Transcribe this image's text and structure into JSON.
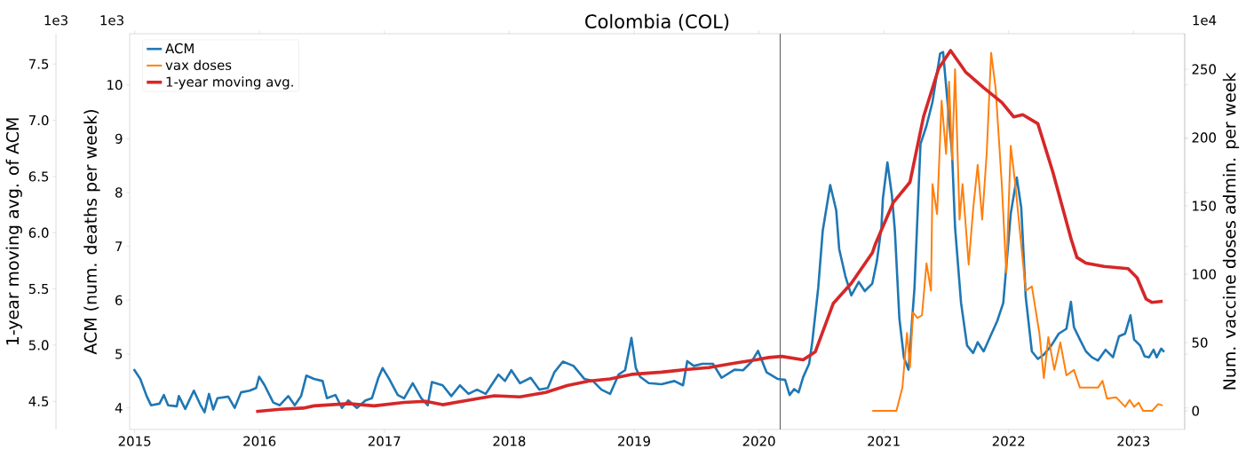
{
  "chart_data": {
    "type": "line",
    "title": "Colombia (COL)",
    "ylabel": "ACM (num. deaths per week)",
    "y2label": "Num. vaccine doses admin. per week",
    "y3label": "1-year moving avg. of ACM",
    "annotations": [
      "1e3",
      "1e3",
      "1e4"
    ],
    "xlim": [
      2014.96,
      2023.41
    ],
    "xticks": [
      2015,
      2016,
      2017,
      2018,
      2019,
      2020,
      2021,
      2022,
      2023
    ],
    "ylim": [
      3.6,
      10.95
    ],
    "yticks": [
      4,
      5,
      6,
      7,
      8,
      9,
      10
    ],
    "y2lim": [
      -13.6,
      276
    ],
    "y2ticks": [
      0,
      50,
      100,
      150,
      200,
      250
    ],
    "y3lim": [
      4.25,
      7.77
    ],
    "y3ticks": [
      4.5,
      {
        "value": 5,
        "label": "5.0"
      },
      5.5,
      {
        "value": 6,
        "label": "6.0"
      },
      6.5,
      {
        "value": 7,
        "label": "7.0"
      },
      7.5
    ],
    "ref_lines": [
      {
        "axis": "x",
        "value": 2020.17,
        "color": "#555555"
      }
    ],
    "legend": "top left",
    "series": [
      {
        "name": "ACM",
        "color": "#1f77b4",
        "x": [
          2014.993,
          2015.045,
          2015.096,
          2015.131,
          2015.199,
          2015.234,
          2015.268,
          2015.337,
          2015.354,
          2015.405,
          2015.474,
          2015.526,
          2015.56,
          2015.595,
          2015.629,
          2015.663,
          2015.749,
          2015.801,
          2015.852,
          2015.921,
          2015.973,
          2015.997,
          2016.041,
          2016.11,
          2016.162,
          2016.23,
          2016.282,
          2016.333,
          2016.375,
          2016.436,
          2016.505,
          2016.54,
          2016.608,
          2016.66,
          2016.711,
          2016.78,
          2016.849,
          2016.9,
          2016.952,
          2016.986,
          2017.038,
          2017.107,
          2017.158,
          2017.227,
          2017.296,
          2017.347,
          2017.381,
          2017.467,
          2017.536,
          2017.605,
          2017.674,
          2017.742,
          2017.811,
          2017.914,
          2017.966,
          2018.017,
          2018.086,
          2018.172,
          2018.241,
          2018.309,
          2018.361,
          2018.43,
          2018.515,
          2018.601,
          2018.67,
          2018.739,
          2018.808,
          2018.876,
          2018.928,
          2018.979,
          2019.014,
          2019.048,
          2019.117,
          2019.22,
          2019.323,
          2019.392,
          2019.426,
          2019.478,
          2019.546,
          2019.632,
          2019.701,
          2019.804,
          2019.873,
          2019.942,
          2019.993,
          2020.062,
          2020.148,
          2020.21,
          2020.246,
          2020.282,
          2020.318,
          2020.354,
          2020.402,
          2020.427,
          2020.475,
          2020.511,
          2020.571,
          2020.619,
          2020.643,
          2020.692,
          2020.74,
          2020.8,
          2020.848,
          2020.908,
          2020.945,
          2020.981,
          2020.993,
          2021.029,
          2021.065,
          2021.089,
          2021.125,
          2021.161,
          2021.198,
          2021.246,
          2021.294,
          2021.342,
          2021.39,
          2021.451,
          2021.475,
          2021.547,
          2021.571,
          2021.619,
          2021.667,
          2021.716,
          2021.752,
          2021.8,
          2021.848,
          2021.908,
          2021.957,
          2022.017,
          2022.065,
          2022.101,
          2022.137,
          2022.186,
          2022.234,
          2022.282,
          2022.342,
          2022.402,
          2022.463,
          2022.499,
          2022.523,
          2022.571,
          2022.619,
          2022.667,
          2022.716,
          2022.776,
          2022.836,
          2022.884,
          2022.933,
          2022.976,
          2023.005,
          2023.053,
          2023.089,
          2023.125,
          2023.161,
          2023.186,
          2023.222,
          2023.246
        ],
        "values": [
          4.72,
          4.54,
          4.22,
          4.05,
          4.08,
          4.24,
          4.05,
          4.03,
          4.22,
          3.98,
          4.32,
          4.06,
          3.92,
          4.26,
          3.97,
          4.18,
          4.21,
          4.0,
          4.29,
          4.32,
          4.37,
          4.58,
          4.42,
          4.1,
          4.05,
          4.22,
          4.05,
          4.22,
          4.6,
          4.54,
          4.5,
          4.18,
          4.24,
          4.0,
          4.14,
          4.0,
          4.14,
          4.18,
          4.56,
          4.74,
          4.54,
          4.24,
          4.18,
          4.46,
          4.18,
          4.05,
          4.48,
          4.42,
          4.22,
          4.42,
          4.26,
          4.34,
          4.26,
          4.62,
          4.5,
          4.7,
          4.46,
          4.56,
          4.34,
          4.37,
          4.66,
          4.86,
          4.78,
          4.54,
          4.5,
          4.34,
          4.26,
          4.62,
          4.7,
          5.3,
          4.74,
          4.58,
          4.46,
          4.44,
          4.5,
          4.42,
          4.87,
          4.78,
          4.82,
          4.82,
          4.56,
          4.71,
          4.7,
          4.86,
          5.06,
          4.66,
          4.54,
          4.52,
          4.24,
          4.35,
          4.29,
          4.57,
          4.82,
          5.22,
          6.23,
          7.29,
          8.14,
          7.67,
          6.95,
          6.45,
          6.09,
          6.34,
          6.17,
          6.31,
          6.73,
          7.35,
          7.89,
          8.56,
          7.95,
          7.29,
          5.66,
          4.94,
          4.71,
          6.23,
          8.9,
          9.24,
          9.68,
          10.58,
          10.61,
          8.73,
          7.35,
          5.95,
          5.16,
          5.02,
          5.22,
          5.05,
          5.3,
          5.61,
          5.95,
          7.61,
          8.28,
          7.72,
          6.06,
          5.05,
          4.91,
          4.99,
          5.16,
          5.38,
          5.47,
          5.97,
          5.5,
          5.27,
          5.05,
          4.94,
          4.88,
          5.08,
          4.94,
          5.33,
          5.38,
          5.72,
          5.27,
          5.16,
          4.96,
          4.94,
          5.08,
          4.94,
          5.1,
          5.04
        ]
      },
      {
        "name": "vax doses",
        "color": "#ff7f0e",
        "axis": "y2",
        "x": [
          2020.908,
          2021.101,
          2021.149,
          2021.186,
          2021.21,
          2021.234,
          2021.27,
          2021.306,
          2021.342,
          2021.378,
          2021.39,
          2021.427,
          2021.463,
          2021.499,
          2021.523,
          2021.547,
          2021.571,
          2021.607,
          2021.631,
          2021.68,
          2021.716,
          2021.752,
          2021.788,
          2021.824,
          2021.86,
          2021.896,
          2021.945,
          2021.981,
          2022.017,
          2022.053,
          2022.137,
          2022.186,
          2022.246,
          2022.282,
          2022.318,
          2022.366,
          2022.414,
          2022.463,
          2022.523,
          2022.571,
          2022.716,
          2022.752,
          2022.788,
          2022.86,
          2022.933,
          2022.969,
          2023.005,
          2023.041,
          2023.077,
          2023.149,
          2023.198,
          2023.234
        ],
        "values": [
          0,
          0,
          17,
          57,
          32,
          72,
          68,
          70,
          108,
          88,
          166,
          144,
          227,
          188,
          241,
          184,
          250,
          140,
          166,
          107,
          148,
          180,
          140,
          188,
          262,
          236,
          166,
          101,
          194,
          166,
          88,
          91,
          57,
          24,
          54,
          30,
          50,
          26,
          30,
          17,
          17,
          22,
          9,
          10,
          3,
          8,
          3,
          6,
          0,
          0,
          5,
          4
        ]
      },
      {
        "name": "1-year moving avg.",
        "color": "#d62728",
        "axis": "y3",
        "x": [
          2015.973,
          2016.162,
          2016.35,
          2016.436,
          2016.711,
          2016.918,
          2017.158,
          2017.33,
          2017.467,
          2017.674,
          2017.88,
          2018.086,
          2018.292,
          2018.464,
          2018.636,
          2018.808,
          2018.979,
          2019.22,
          2019.392,
          2019.598,
          2019.804,
          2019.976,
          2020.079,
          2020.182,
          2020.354,
          2020.451,
          2020.595,
          2020.74,
          2020.908,
          2020.933,
          2021.077,
          2021.21,
          2021.318,
          2021.439,
          2021.535,
          2021.655,
          2021.8,
          2021.945,
          2022.041,
          2022.113,
          2022.234,
          2022.354,
          2022.499,
          2022.547,
          2022.619,
          2022.764,
          2022.957,
          2023.029,
          2023.101,
          2023.149,
          2023.234
        ],
        "values": [
          4.41,
          4.43,
          4.44,
          4.46,
          4.48,
          4.46,
          4.49,
          4.5,
          4.47,
          4.51,
          4.55,
          4.54,
          4.58,
          4.64,
          4.68,
          4.7,
          4.74,
          4.76,
          4.78,
          4.8,
          4.84,
          4.87,
          4.89,
          4.9,
          4.87,
          4.94,
          5.37,
          5.55,
          5.82,
          5.9,
          6.27,
          6.45,
          7.03,
          7.46,
          7.62,
          7.43,
          7.29,
          7.16,
          7.03,
          7.05,
          6.97,
          6.54,
          5.95,
          5.78,
          5.73,
          5.7,
          5.68,
          5.6,
          5.41,
          5.38,
          5.39
        ]
      }
    ]
  }
}
